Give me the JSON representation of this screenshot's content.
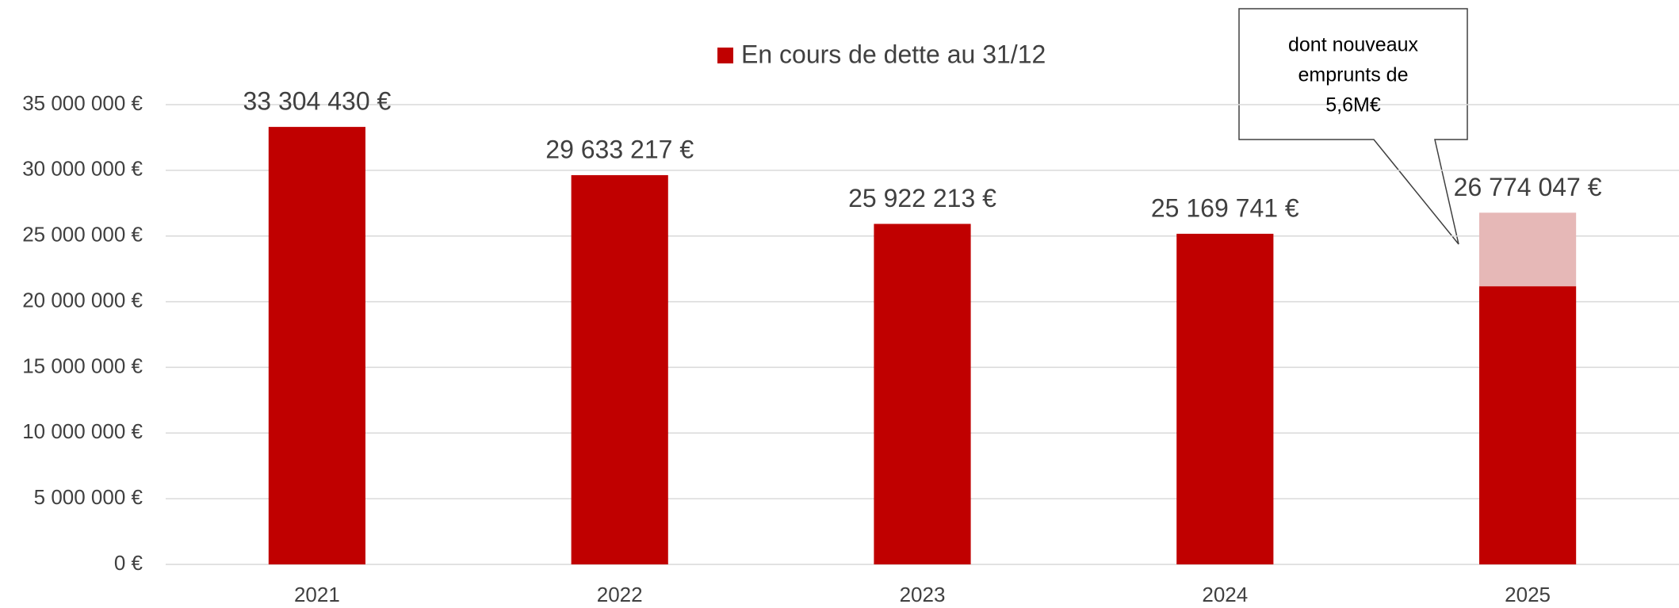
{
  "chart_data": {
    "type": "bar",
    "categories": [
      "2021",
      "2022",
      "2023",
      "2024",
      "2025"
    ],
    "series": [
      {
        "name": "En cours de dette au 31/12",
        "color": "#c00000",
        "values": [
          33304430,
          29633217,
          25922213,
          25169741,
          21174047
        ]
      },
      {
        "color": "#e6b8b7",
        "values": [
          null,
          null,
          null,
          null,
          5600000
        ]
      }
    ],
    "stacked": true,
    "totals": {
      "values": [
        33304430,
        29633217,
        25922213,
        25169741,
        26774047
      ],
      "labels": [
        "33 304 430 €",
        "29 633 217 €",
        "25 922 213 €",
        "25 169 741 €",
        "26 774 047 €"
      ]
    },
    "ylim": [
      0,
      35000000
    ],
    "yticks": [
      {
        "value": 0,
        "label": "0 €"
      },
      {
        "value": 5000000,
        "label": "5 000 000 €"
      },
      {
        "value": 10000000,
        "label": "10 000 000 €"
      },
      {
        "value": 15000000,
        "label": "15 000 000 €"
      },
      {
        "value": 20000000,
        "label": "20 000 000 €"
      },
      {
        "value": 25000000,
        "label": "25 000 000 €"
      },
      {
        "value": 30000000,
        "label": "30 000 000 €"
      },
      {
        "value": 35000000,
        "label": "35 000 000 €"
      }
    ],
    "grid": true,
    "legend": "top",
    "annotation": {
      "lines": [
        "dont nouveaux",
        "emprunts de",
        "5,6M€"
      ]
    }
  }
}
